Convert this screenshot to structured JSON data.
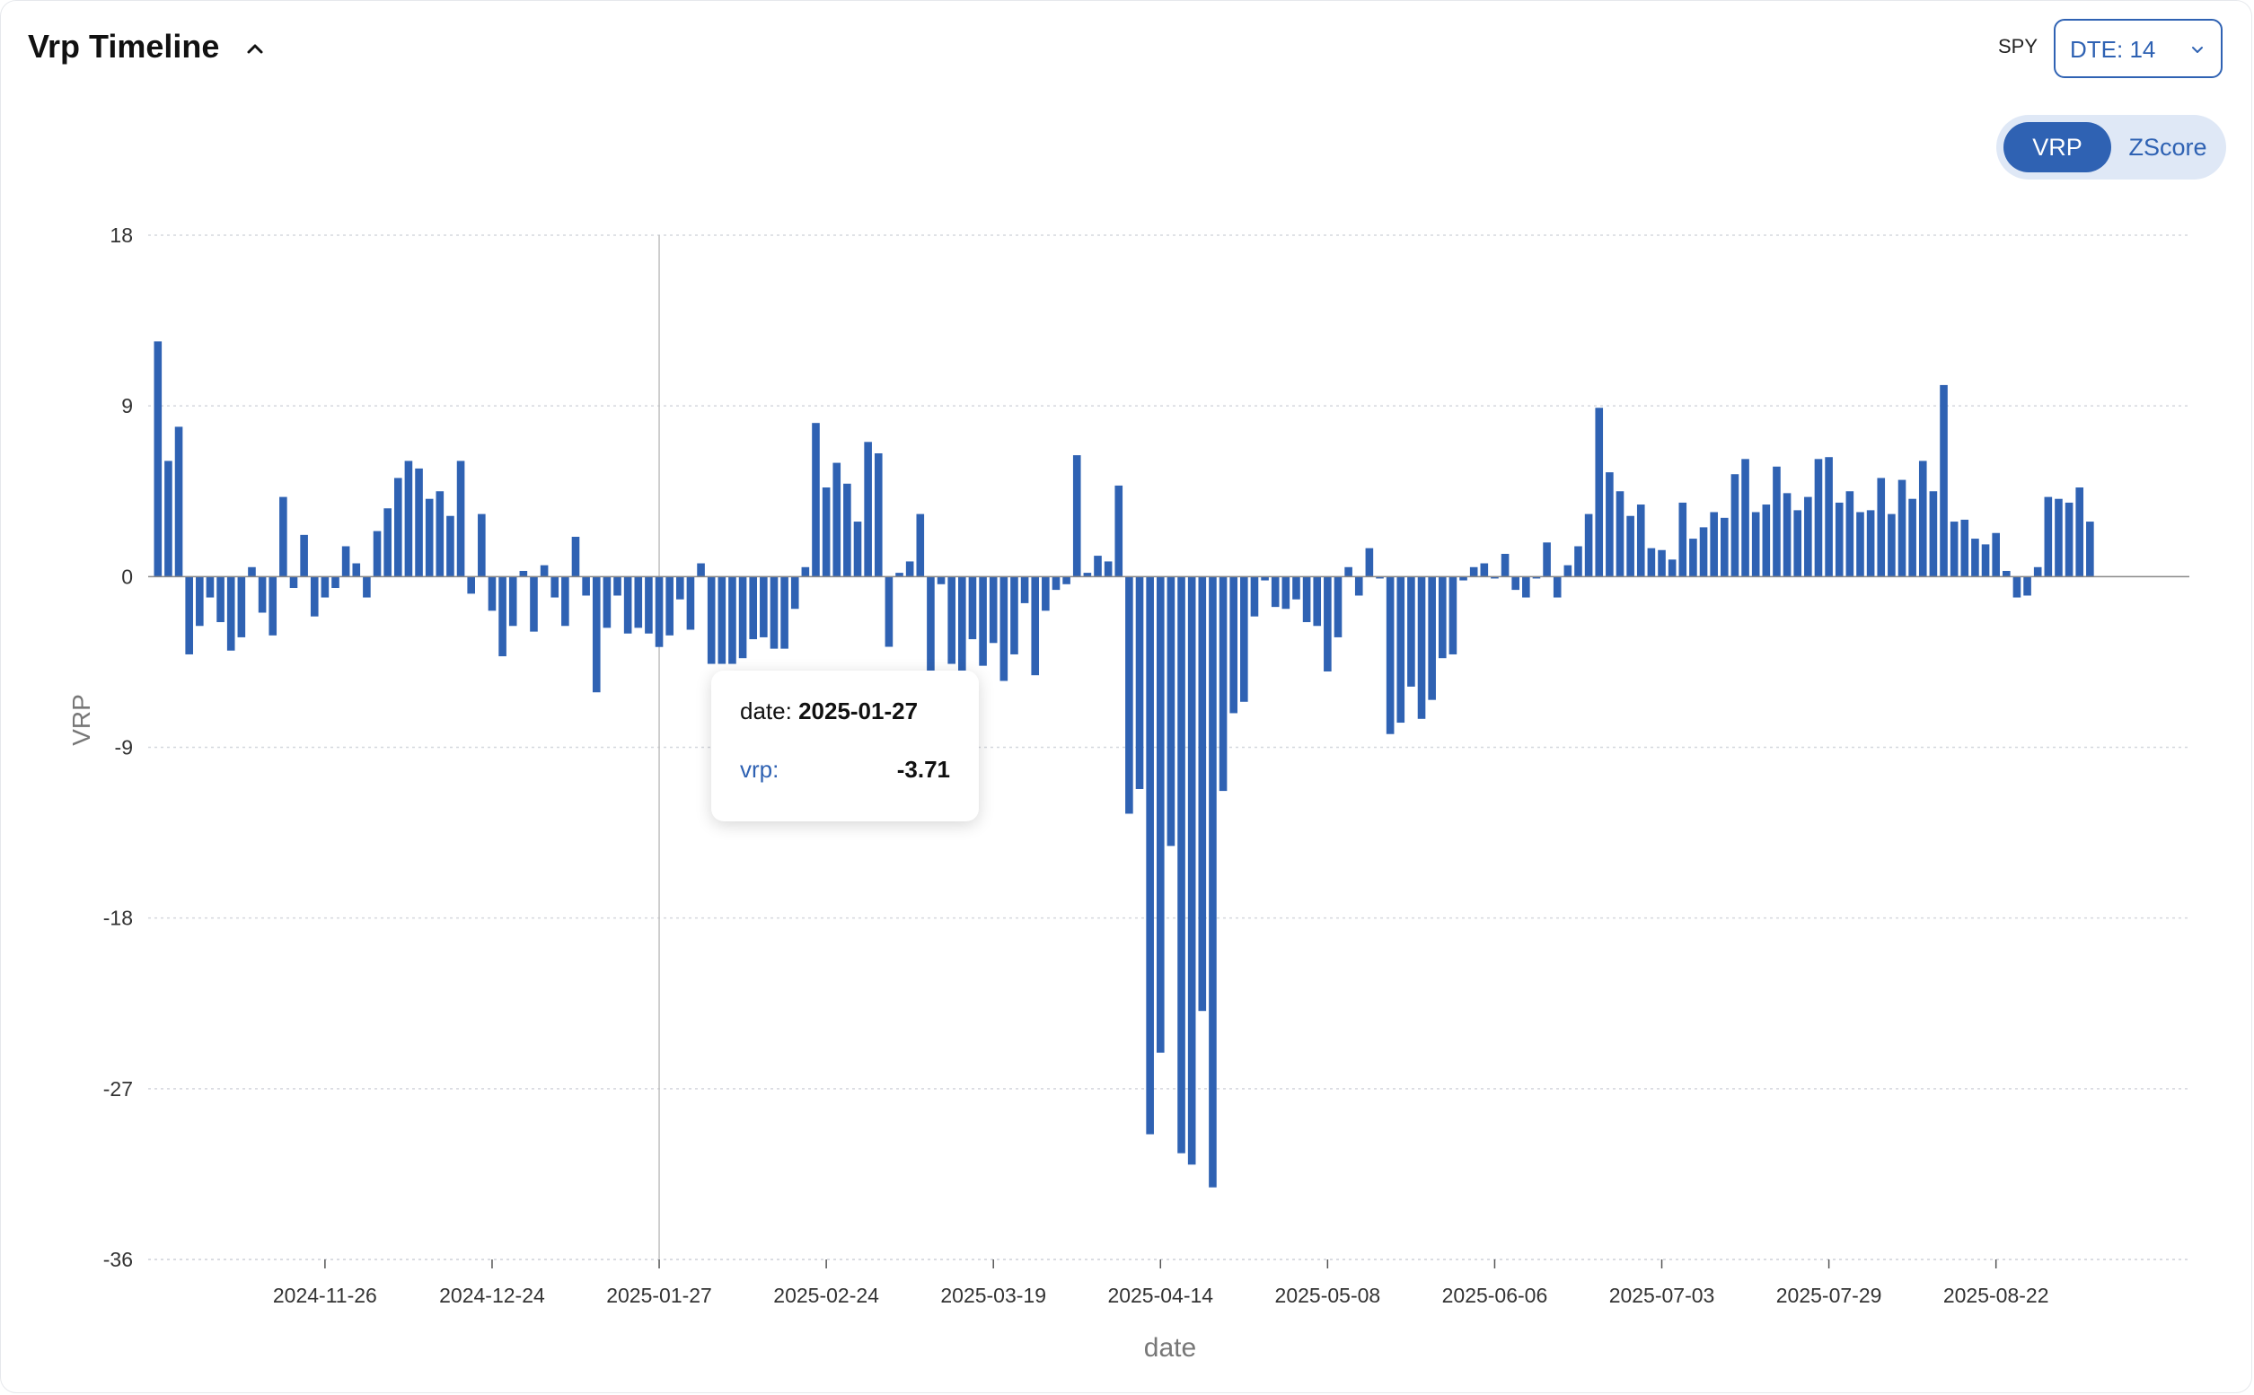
{
  "header": {
    "title": "Vrp Timeline",
    "collapse_icon": "chevron-up-icon"
  },
  "controls": {
    "ticker": "SPY",
    "dte_selected": "DTE: 14",
    "toggle": {
      "options": [
        "VRP",
        "ZScore"
      ],
      "active": "VRP"
    }
  },
  "colors": {
    "bar": "#2f62b3",
    "accent": "#2f62b3",
    "grid": "#d5d8de",
    "axis": "#888888"
  },
  "tooltip": {
    "date_label": "date:",
    "date_value": "2025-01-27",
    "series_label": "vrp:",
    "value": "-3.71"
  },
  "chart_data": {
    "type": "bar",
    "xlabel": "date",
    "ylabel": "VRP",
    "ylim": [
      -36,
      18
    ],
    "yticks": [
      18,
      9,
      0,
      -9,
      -18,
      -27,
      -36
    ],
    "grid": true,
    "xticks": [
      {
        "label": "2024-11-26",
        "index": 16
      },
      {
        "label": "2024-12-24",
        "index": 32
      },
      {
        "label": "2025-01-27",
        "index": 48
      },
      {
        "label": "2025-02-24",
        "index": 64
      },
      {
        "label": "2025-03-19",
        "index": 80
      },
      {
        "label": "2025-04-14",
        "index": 96
      },
      {
        "label": "2025-05-08",
        "index": 112
      },
      {
        "label": "2025-06-06",
        "index": 128
      },
      {
        "label": "2025-07-03",
        "index": 144
      },
      {
        "label": "2025-07-29",
        "index": 160
      },
      {
        "label": "2025-08-22",
        "index": 176
      }
    ],
    "highlight_index": 48,
    "values": [
      12.4,
      6.1,
      7.9,
      -4.1,
      -2.6,
      -1.1,
      -2.4,
      -3.9,
      -3.2,
      0.5,
      -1.9,
      -3.1,
      4.2,
      -0.6,
      2.2,
      -2.1,
      -1.1,
      -0.6,
      1.6,
      0.7,
      -1.1,
      2.4,
      3.6,
      5.2,
      6.1,
      5.7,
      4.1,
      4.5,
      3.2,
      6.1,
      -0.9,
      3.3,
      -1.8,
      -4.2,
      -2.6,
      0.3,
      -2.9,
      0.6,
      -1.1,
      -2.6,
      2.1,
      -1.0,
      -6.1,
      -2.7,
      -1.0,
      -3.0,
      -2.7,
      -3.0,
      -3.71,
      -3.1,
      -1.2,
      -2.8,
      0.7,
      -4.6,
      -4.6,
      -4.6,
      -4.3,
      -3.3,
      -3.2,
      -3.8,
      -3.8,
      -1.7,
      0.5,
      8.1,
      4.7,
      6.0,
      4.9,
      2.9,
      7.1,
      6.5,
      -3.7,
      0.2,
      0.8,
      3.3,
      -6.3,
      -0.4,
      -4.6,
      -5.4,
      -3.3,
      -4.7,
      -3.5,
      -5.5,
      -4.1,
      -1.4,
      -5.2,
      -1.8,
      -0.7,
      -0.4,
      6.4,
      0.2,
      1.1,
      0.8,
      4.8,
      -12.5,
      -11.2,
      -29.4,
      -25.1,
      -14.2,
      -30.4,
      -31.0,
      -22.9,
      -32.2,
      -11.3,
      -7.2,
      -6.6,
      -2.1,
      -0.2,
      -1.6,
      -1.7,
      -1.2,
      -2.4,
      -2.6,
      -5.0,
      -3.2,
      0.5,
      -1.0,
      1.5,
      -0.1,
      -8.3,
      -7.7,
      -5.8,
      -7.5,
      -6.5,
      -4.3,
      -4.1,
      -0.2,
      0.5,
      0.7,
      -0.1,
      1.2,
      -0.7,
      -1.1,
      -0.1,
      1.8,
      -1.1,
      0.6,
      1.6,
      3.3,
      8.9,
      5.5,
      4.5,
      3.2,
      3.8,
      1.5,
      1.4,
      0.9,
      3.9,
      2.0,
      2.6,
      3.4,
      3.1,
      5.4,
      6.2,
      3.4,
      3.8,
      5.8,
      4.4,
      3.5,
      4.2,
      6.2,
      6.3,
      3.9,
      4.5,
      3.4,
      3.5,
      5.2,
      3.3,
      5.1,
      4.1,
      6.1,
      4.5,
      10.1,
      2.9,
      3.0,
      2.0,
      1.7,
      2.3,
      0.3,
      -1.1,
      -1.0,
      0.5,
      4.2,
      4.1,
      3.9,
      4.7,
      2.9
    ]
  }
}
